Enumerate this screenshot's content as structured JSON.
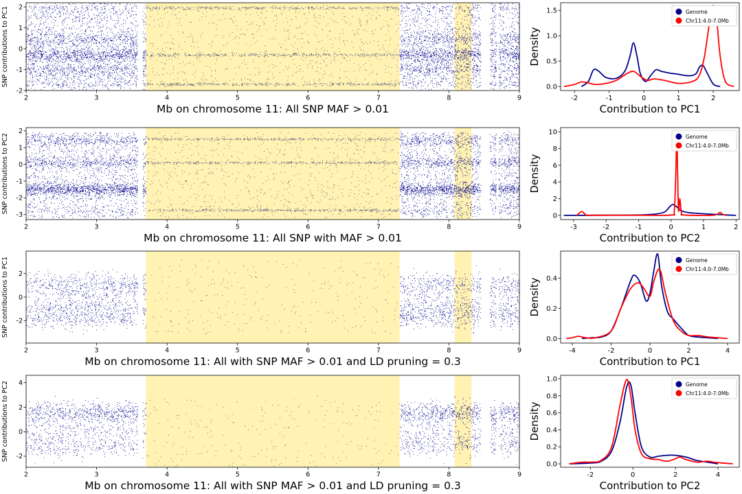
{
  "figure": {
    "colors": {
      "genome": "#00008b",
      "region": "#ff0000",
      "highlight": "#fff2b2",
      "region_points": "#4b4b78"
    }
  },
  "chart_data": [
    {
      "type": "scatter",
      "xlabel": "Mb on chromosome 11: All SNP MAF > 0.01",
      "ylabel": "SNP contributions to PC1",
      "xlim": [
        2,
        9
      ],
      "ylim": [
        -2,
        2.2
      ],
      "xticks": [
        "2",
        "3",
        "4",
        "5",
        "6",
        "7",
        "8",
        "9"
      ],
      "yticks": [
        "-2",
        "-1",
        "0",
        "1",
        "2"
      ],
      "highlight_regions": [
        [
          3.7,
          7.3
        ],
        [
          8.08,
          8.32
        ]
      ],
      "gaps": [
        [
          3.58,
          3.65
        ],
        [
          8.45,
          8.58
        ],
        [
          8.67,
          8.7
        ]
      ],
      "density": "high",
      "bands": [
        {
          "y": -0.3,
          "w": 0.4
        },
        {
          "y": 0.45,
          "w": 0.2
        },
        {
          "y": -1.0,
          "w": 0.2
        },
        {
          "y": 1.95,
          "w": 0.08
        },
        {
          "y": -1.7,
          "w": 0.08
        }
      ],
      "spread": [
        -1.8,
        2.05
      ]
    },
    {
      "type": "density",
      "xlabel": "Contribution to PC1",
      "ylabel": "Density",
      "xlim": [
        -2.4,
        2.75
      ],
      "ylim": [
        -0.08,
        1.65
      ],
      "xticks": [
        "-2",
        "-1",
        "0",
        "1",
        "2"
      ],
      "yticks": [
        "0.0",
        "0.5",
        "1.0",
        "1.5"
      ],
      "legend": [
        "Genome",
        "Chr11:4.0-7.0Mb"
      ],
      "legend_position": "top-right",
      "series": [
        {
          "name": "Genome",
          "x": [
            -1.8,
            -1.6,
            -1.45,
            -1.3,
            -1.1,
            -0.8,
            -0.55,
            -0.4,
            -0.3,
            -0.2,
            -0.1,
            0.05,
            0.2,
            0.35,
            0.5,
            0.7,
            1.0,
            1.3,
            1.5,
            1.6,
            1.7,
            1.8,
            2.0,
            2.2
          ],
          "values": [
            0.0,
            0.1,
            0.33,
            0.3,
            0.18,
            0.16,
            0.3,
            0.6,
            0.86,
            0.6,
            0.25,
            0.1,
            0.22,
            0.33,
            0.3,
            0.27,
            0.24,
            0.21,
            0.25,
            0.38,
            0.42,
            0.3,
            0.05,
            0.0
          ]
        },
        {
          "name": "Chr11:4.0-7.0Mb",
          "x": [
            -2.3,
            -2.0,
            -1.8,
            -1.6,
            -1.4,
            -1.1,
            -0.8,
            -0.5,
            -0.3,
            -0.1,
            0.1,
            0.3,
            0.6,
            1.0,
            1.4,
            1.6,
            1.75,
            1.9,
            2.0,
            2.1,
            2.2,
            2.35,
            2.6
          ],
          "values": [
            0.0,
            0.04,
            0.09,
            0.07,
            0.04,
            0.06,
            0.12,
            0.25,
            0.3,
            0.2,
            0.12,
            0.15,
            0.12,
            0.06,
            0.1,
            0.22,
            0.6,
            1.3,
            1.6,
            1.3,
            0.6,
            0.1,
            0.0
          ]
        }
      ]
    },
    {
      "type": "scatter",
      "xlabel": "Mb on chromosome 11: All SNP with MAF > 0.01",
      "ylabel": "SNP contributions to PC2",
      "xlim": [
        2,
        9
      ],
      "ylim": [
        -3.3,
        2.2
      ],
      "xticks": [
        "2",
        "3",
        "4",
        "5",
        "6",
        "7",
        "8",
        "9"
      ],
      "yticks": [
        "-3",
        "-2",
        "-1",
        "0",
        "1",
        "2"
      ],
      "highlight_regions": [
        [
          3.7,
          7.3
        ],
        [
          8.08,
          8.32
        ]
      ],
      "gaps": [
        [
          3.58,
          3.65
        ],
        [
          8.45,
          8.58
        ],
        [
          8.67,
          8.7
        ]
      ],
      "density": "high",
      "bands": [
        {
          "y": 0.1,
          "w": 0.35
        },
        {
          "y": -1.5,
          "w": 0.8
        },
        {
          "y": 1.4,
          "w": 0.2
        },
        {
          "y": -2.75,
          "w": 0.08
        },
        {
          "y": 1.5,
          "w": 0.08
        }
      ],
      "spread": [
        -3.2,
        1.9
      ]
    },
    {
      "type": "density",
      "xlabel": "Contribution to PC2",
      "ylabel": "Density",
      "xlim": [
        -3.4,
        2.1
      ],
      "ylim": [
        -0.5,
        10.5
      ],
      "xticks": [
        "-3",
        "-2",
        "-1",
        "0",
        "1",
        "2"
      ],
      "yticks": [
        "0",
        "2",
        "4",
        "6",
        "8",
        "10"
      ],
      "legend": [
        "Genome",
        "Chr11:4.0-7.0Mb"
      ],
      "legend_position": "top-right",
      "series": [
        {
          "name": "Genome",
          "x": [
            -3.3,
            -2.0,
            -1.0,
            -0.5,
            -0.2,
            -0.05,
            0.05,
            0.15,
            0.3,
            0.5,
            0.8,
            1.2,
            1.5,
            1.7,
            2.0
          ],
          "values": [
            0.0,
            0.02,
            0.05,
            0.15,
            0.4,
            1.0,
            1.3,
            1.1,
            0.6,
            0.35,
            0.25,
            0.15,
            0.1,
            0.05,
            0.0
          ]
        },
        {
          "name": "Chr11:4.0-7.0Mb",
          "x": [
            -2.9,
            -2.75,
            -2.6,
            -2.4,
            -1.0,
            0.0,
            0.1,
            0.15,
            0.18,
            0.2,
            0.23,
            0.27,
            0.32,
            0.4,
            1.3,
            1.5,
            1.6,
            1.7
          ],
          "values": [
            0.0,
            0.45,
            0.0,
            0.02,
            0.02,
            0.05,
            0.6,
            5.5,
            10.0,
            5.5,
            0.6,
            2.0,
            0.3,
            0.05,
            0.02,
            0.35,
            0.1,
            0.0
          ]
        }
      ]
    },
    {
      "type": "scatter",
      "xlabel": "Mb on chromosome 11: All with SNP MAF > 0.01 and LD pruning = 0.3",
      "ylabel": "SNP contributions to PC1",
      "xlim": [
        2,
        9
      ],
      "ylim": [
        -3.9,
        3.9
      ],
      "xticks": [
        "2",
        "3",
        "4",
        "5",
        "6",
        "7",
        "8",
        "9"
      ],
      "yticks": [
        "-2",
        "0",
        "2"
      ],
      "highlight_regions": [
        [
          3.7,
          7.3
        ],
        [
          8.08,
          8.32
        ]
      ],
      "gaps": [
        [
          3.58,
          3.65
        ],
        [
          8.45,
          8.58
        ],
        [
          8.67,
          8.7
        ]
      ],
      "density": "low",
      "bands": [
        {
          "y": 0.4,
          "w": 0.35
        },
        {
          "y": -0.9,
          "w": 0.5
        },
        {
          "y": 1.2,
          "w": 0.5
        },
        {
          "y": -1.8,
          "w": 0.6
        }
      ],
      "spread": [
        -3.5,
        3.5
      ]
    },
    {
      "type": "density",
      "xlabel": "Contribution to PC1",
      "ylabel": "Density",
      "xlim": [
        -4.6,
        4.6
      ],
      "ylim": [
        -0.03,
        0.58
      ],
      "xticks": [
        "-4",
        "-2",
        "0",
        "2",
        "4"
      ],
      "yticks": [
        "0.0",
        "0.2",
        "0.4"
      ],
      "legend": [
        "Genome",
        "Chr11:4.0-7.0Mb"
      ],
      "legend_position": "top-right",
      "series": [
        {
          "name": "Genome",
          "x": [
            -3.5,
            -3.0,
            -2.5,
            -2.0,
            -1.5,
            -1.0,
            -0.8,
            -0.5,
            -0.2,
            0.0,
            0.2,
            0.4,
            0.6,
            0.9,
            1.2,
            1.6,
            2.0,
            2.5,
            3.0,
            3.5
          ],
          "values": [
            0.0,
            0.005,
            0.01,
            0.05,
            0.2,
            0.38,
            0.42,
            0.37,
            0.25,
            0.3,
            0.45,
            0.56,
            0.35,
            0.18,
            0.13,
            0.07,
            0.02,
            0.01,
            0.005,
            0.0
          ]
        },
        {
          "name": "Chr11:4.0-7.0Mb",
          "x": [
            -4.3,
            -4.0,
            -3.7,
            -3.3,
            -2.8,
            -2.0,
            -1.5,
            -1.0,
            -0.6,
            -0.3,
            0.0,
            0.2,
            0.5,
            0.8,
            1.2,
            1.6,
            2.0,
            2.5,
            3.0,
            3.5,
            4.0
          ],
          "values": [
            0.0,
            0.005,
            0.015,
            0.005,
            0.005,
            0.05,
            0.2,
            0.33,
            0.37,
            0.33,
            0.28,
            0.38,
            0.46,
            0.3,
            0.12,
            0.05,
            0.02,
            0.02,
            0.01,
            0.005,
            0.0
          ]
        }
      ]
    },
    {
      "type": "scatter",
      "xlabel": "Mb on chromosome 11: All with SNP MAF > 0.01 and LD pruning = 0.3",
      "ylabel": "SNP contributions to PC2",
      "xlim": [
        2,
        9
      ],
      "ylim": [
        -2.9,
        4.6
      ],
      "xticks": [
        "2",
        "3",
        "4",
        "5",
        "6",
        "7",
        "8",
        "9"
      ],
      "yticks": [
        "-2",
        "0",
        "2",
        "4"
      ],
      "highlight_regions": [
        [
          3.7,
          7.3
        ],
        [
          8.08,
          8.32
        ]
      ],
      "gaps": [
        [
          3.58,
          3.65
        ],
        [
          8.45,
          8.58
        ],
        [
          8.67,
          8.7
        ]
      ],
      "density": "low",
      "bands": [
        {
          "y": 0.0,
          "w": 0.3
        },
        {
          "y": 1.5,
          "w": 1.0
        },
        {
          "y": -1.2,
          "w": 0.5
        }
      ],
      "spread": [
        -2.3,
        4.2
      ]
    },
    {
      "type": "density",
      "xlabel": "Contribution to PC2",
      "ylabel": "Density",
      "xlim": [
        -3.4,
        5.0
      ],
      "ylim": [
        -0.04,
        1.04
      ],
      "xticks": [
        "-2",
        "0",
        "2",
        "4"
      ],
      "yticks": [
        "0.0",
        "0.2",
        "0.4",
        "0.6",
        "0.8",
        "1.0"
      ],
      "legend": [
        "Genome",
        "Chr11:4.0-7.0Mb"
      ],
      "legend_position": "top-right",
      "series": [
        {
          "name": "Genome",
          "x": [
            -3.0,
            -2.0,
            -1.5,
            -1.0,
            -0.6,
            -0.3,
            -0.1,
            0.1,
            0.4,
            0.8,
            1.2,
            1.6,
            2.0,
            2.5,
            3.0,
            3.5,
            4.0
          ],
          "values": [
            0.0,
            0.01,
            0.03,
            0.15,
            0.5,
            0.9,
            0.93,
            0.6,
            0.2,
            0.08,
            0.09,
            0.1,
            0.1,
            0.08,
            0.04,
            0.02,
            0.0
          ]
        },
        {
          "name": "Chr11:4.0-7.0Mb",
          "x": [
            -3.0,
            -2.4,
            -2.0,
            -1.5,
            -1.0,
            -0.6,
            -0.3,
            -0.1,
            0.1,
            0.4,
            0.8,
            1.2,
            1.6,
            2.0,
            2.2,
            2.5,
            3.0,
            3.5,
            3.8,
            4.2,
            4.7
          ],
          "values": [
            0.0,
            0.02,
            0.02,
            0.04,
            0.2,
            0.7,
            0.99,
            0.8,
            0.4,
            0.12,
            0.06,
            0.05,
            0.03,
            0.06,
            0.08,
            0.05,
            0.02,
            0.03,
            0.02,
            0.01,
            0.0
          ]
        }
      ]
    }
  ]
}
